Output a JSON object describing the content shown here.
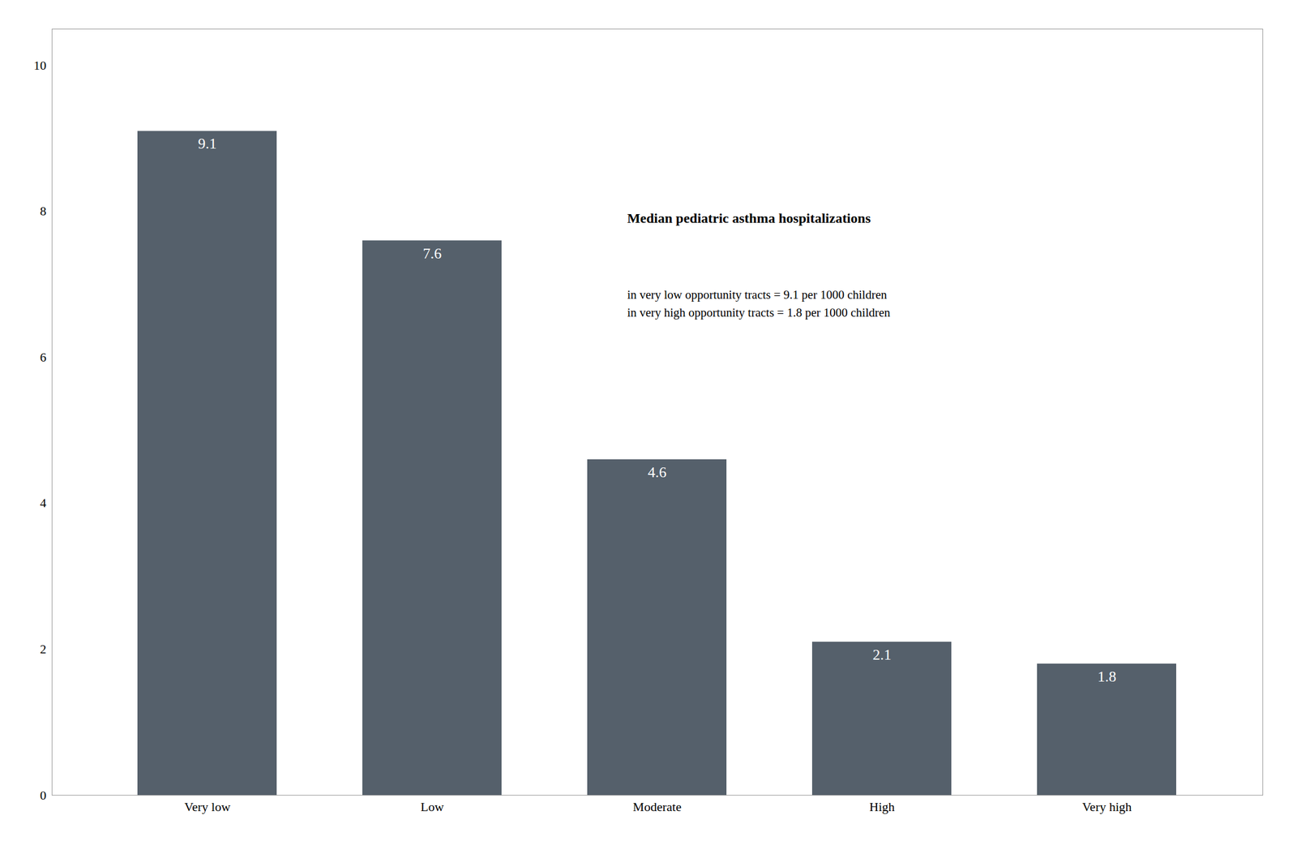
{
  "chart_data": {
    "type": "bar",
    "categories": [
      "Very low",
      "Low",
      "Moderate",
      "High",
      "Very high"
    ],
    "values": [
      9.1,
      7.6,
      4.6,
      2.1,
      1.8
    ],
    "color": "#55606b",
    "ylim": [
      0,
      10.5
    ],
    "yticks": [
      0,
      2,
      4,
      6,
      8,
      10
    ],
    "grid": false,
    "data_labels": true,
    "annotations": [
      "Median pediatric asthma hospitalizations",
      "in very low opportunity tracts = 9.1 per 1000 children",
      "in very high opportunity tracts = 1.8 per 1000 children"
    ]
  }
}
